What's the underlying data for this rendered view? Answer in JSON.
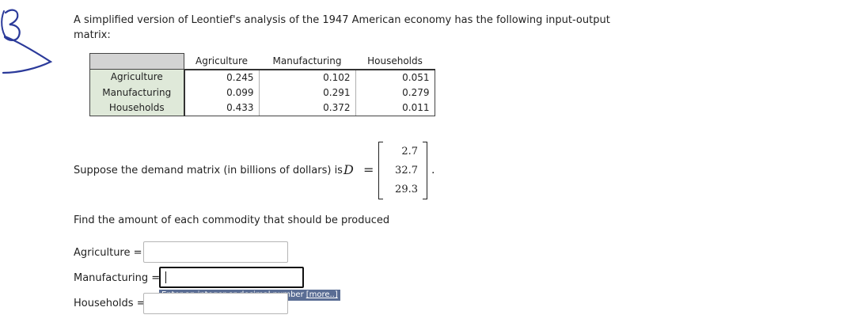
{
  "intro_text": "A simplified version of Leontief's analysis of the 1947 American economy has the following input-output matrix:",
  "io_table": {
    "columns": [
      "Agriculture",
      "Manufacturing",
      "Households"
    ],
    "rows": [
      {
        "label": "Agriculture",
        "values": [
          "0.245",
          "0.102",
          "0.051"
        ]
      },
      {
        "label": "Manufacturing",
        "values": [
          "0.099",
          "0.291",
          "0.279"
        ]
      },
      {
        "label": "Households",
        "values": [
          "0.433",
          "0.372",
          "0.011"
        ]
      }
    ]
  },
  "demand": {
    "text": "Suppose the demand matrix (in billions of dollars) is",
    "symbol": "D",
    "equals": "=",
    "entries": [
      "2.7",
      "32.7",
      "29.3"
    ],
    "end": "."
  },
  "find_text": "Find the amount of each commodity that should be produced",
  "answers": {
    "agriculture_label": "Agriculture =",
    "agriculture_value": "",
    "manufacturing_label": "Manufacturing =",
    "manufacturing_value": "",
    "households_label": "Households =",
    "households_value": ""
  },
  "hint": {
    "text": "Enter an integer or decimal number",
    "more": "[more..]"
  },
  "colors": {
    "corner_fill": "#d3d3d3",
    "rowhead_fill": "#dfe9d9",
    "hint_background": "#5a6d94",
    "annotation_ink": "#2b3a9a"
  },
  "annotation_icon": "handwritten-circled-3"
}
